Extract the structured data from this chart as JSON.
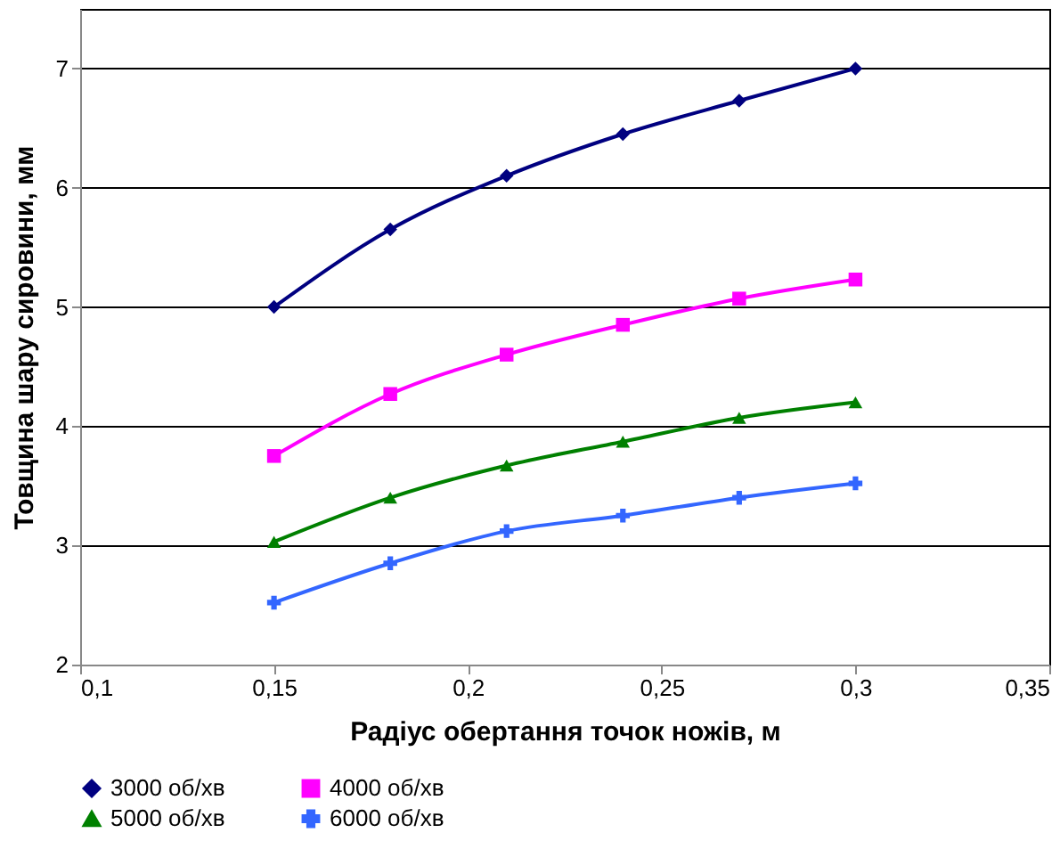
{
  "chart_data": {
    "type": "line",
    "xlabel": "Радіус обертання точок ножів, м",
    "ylabel": "Товщина шару сировини, мм",
    "x": [
      0.15,
      0.18,
      0.21,
      0.24,
      0.27,
      0.3
    ],
    "series": [
      {
        "name": "3000 об/хв",
        "color": "#000080",
        "marker": "diamond",
        "values": [
          5.0,
          5.65,
          6.1,
          6.45,
          6.73,
          7.0
        ]
      },
      {
        "name": "4000 об/хв",
        "color": "#ff00ff",
        "marker": "square",
        "values": [
          3.75,
          4.27,
          4.6,
          4.85,
          5.07,
          5.23
        ]
      },
      {
        "name": "5000 об/хв",
        "color": "#008000",
        "marker": "triangle",
        "values": [
          3.03,
          3.4,
          3.67,
          3.87,
          4.07,
          4.2
        ]
      },
      {
        "name": "6000 об/хв",
        "color": "#3366ff",
        "marker": "cross",
        "values": [
          2.52,
          2.85,
          3.12,
          3.25,
          3.4,
          3.52
        ]
      }
    ],
    "xlim": [
      0.1,
      0.35
    ],
    "xticks": [
      {
        "value": 0.1,
        "label": "0,1"
      },
      {
        "value": 0.15,
        "label": "0,15"
      },
      {
        "value": 0.2,
        "label": "0,2"
      },
      {
        "value": 0.25,
        "label": "0,25"
      },
      {
        "value": 0.3,
        "label": "0,3"
      },
      {
        "value": 0.35,
        "label": "0,35"
      }
    ],
    "ylim": [
      2,
      7.5
    ],
    "yticks": [
      2,
      3,
      4,
      5,
      6,
      7
    ],
    "grid": "y",
    "legend": "bottom",
    "line_style": "solid"
  }
}
